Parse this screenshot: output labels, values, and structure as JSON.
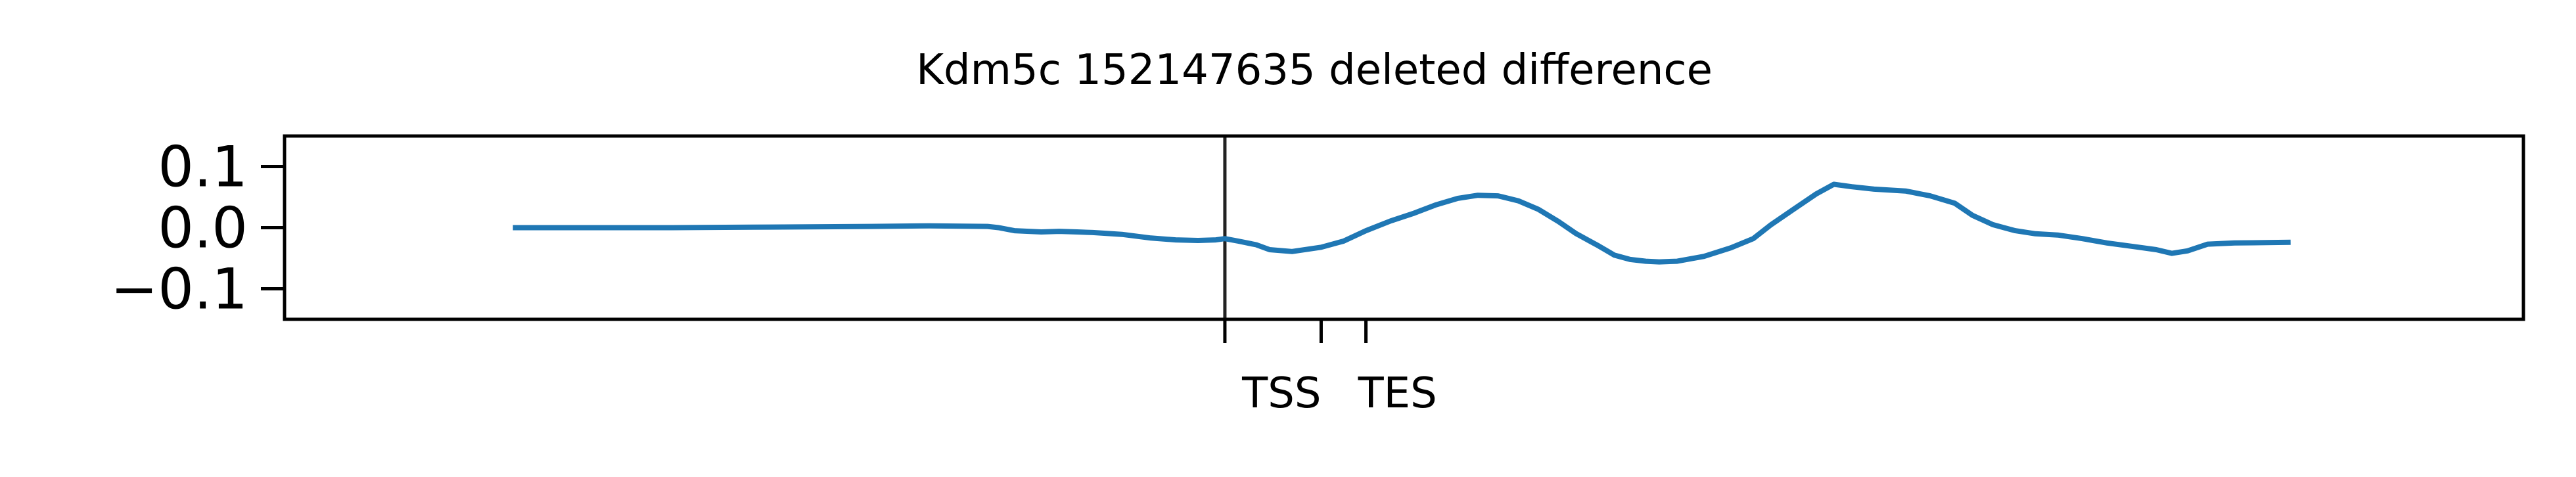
{
  "chart_data": {
    "type": "line",
    "title": "Kdm5c 152147635 deleted difference",
    "xlabel": "",
    "ylabel": "",
    "ylim": [
      -0.15,
      0.15
    ],
    "yticks": [
      0.1,
      0.0,
      -0.1
    ],
    "ytick_labels": [
      "0.1",
      "0.0",
      "−0.1"
    ],
    "xlim": [
      0,
      100
    ],
    "x_markers": [
      {
        "x": 42,
        "label": "",
        "vline": true
      },
      {
        "x": 46.3,
        "label": "TSS",
        "vline": false
      },
      {
        "x": 48.3,
        "label": "TES",
        "vline": false
      }
    ],
    "grid": false,
    "series": [
      {
        "color": "#1f77b4",
        "points": [
          [
            10.2,
            0.0
          ],
          [
            17.3,
            0.0
          ],
          [
            21.7,
            0.001
          ],
          [
            26.2,
            0.002
          ],
          [
            28.8,
            0.003
          ],
          [
            31.4,
            0.002
          ],
          [
            31.9,
            0.0
          ],
          [
            32.6,
            -0.005
          ],
          [
            33.8,
            -0.007
          ],
          [
            34.6,
            -0.006
          ],
          [
            35.4,
            -0.007
          ],
          [
            36.1,
            -0.008
          ],
          [
            37.4,
            -0.011
          ],
          [
            38.7,
            -0.017
          ],
          [
            39.8,
            -0.02
          ],
          [
            40.8,
            -0.021
          ],
          [
            41.6,
            -0.02
          ],
          [
            42.0,
            -0.018
          ],
          [
            42.6,
            -0.022
          ],
          [
            43.4,
            -0.028
          ],
          [
            44.0,
            -0.036
          ],
          [
            45.0,
            -0.039
          ],
          [
            46.3,
            -0.032
          ],
          [
            47.3,
            -0.022
          ],
          [
            48.3,
            -0.005
          ],
          [
            49.4,
            0.011
          ],
          [
            50.4,
            0.023
          ],
          [
            51.4,
            0.037
          ],
          [
            52.4,
            0.048
          ],
          [
            53.3,
            0.053
          ],
          [
            54.2,
            0.052
          ],
          [
            55.1,
            0.044
          ],
          [
            56.0,
            0.03
          ],
          [
            56.9,
            0.01
          ],
          [
            57.7,
            -0.01
          ],
          [
            58.7,
            -0.03
          ],
          [
            59.4,
            -0.045
          ],
          [
            60.1,
            -0.052
          ],
          [
            60.8,
            -0.055
          ],
          [
            61.4,
            -0.056
          ],
          [
            62.2,
            -0.055
          ],
          [
            63.4,
            -0.047
          ],
          [
            64.6,
            -0.033
          ],
          [
            65.6,
            -0.018
          ],
          [
            66.4,
            0.005
          ],
          [
            67.4,
            0.03
          ],
          [
            68.4,
            0.055
          ],
          [
            69.2,
            0.071
          ],
          [
            70.0,
            0.067
          ],
          [
            71.0,
            0.063
          ],
          [
            72.4,
            0.06
          ],
          [
            73.5,
            0.052
          ],
          [
            74.6,
            0.04
          ],
          [
            75.4,
            0.02
          ],
          [
            76.3,
            0.005
          ],
          [
            77.3,
            -0.005
          ],
          [
            78.2,
            -0.01
          ],
          [
            79.2,
            -0.012
          ],
          [
            80.3,
            -0.018
          ],
          [
            81.4,
            -0.025
          ],
          [
            82.6,
            -0.031
          ],
          [
            83.6,
            -0.036
          ],
          [
            84.3,
            -0.042
          ],
          [
            85.0,
            -0.038
          ],
          [
            85.9,
            -0.027
          ],
          [
            87.1,
            -0.025
          ],
          [
            89.6,
            -0.024
          ]
        ]
      }
    ]
  }
}
